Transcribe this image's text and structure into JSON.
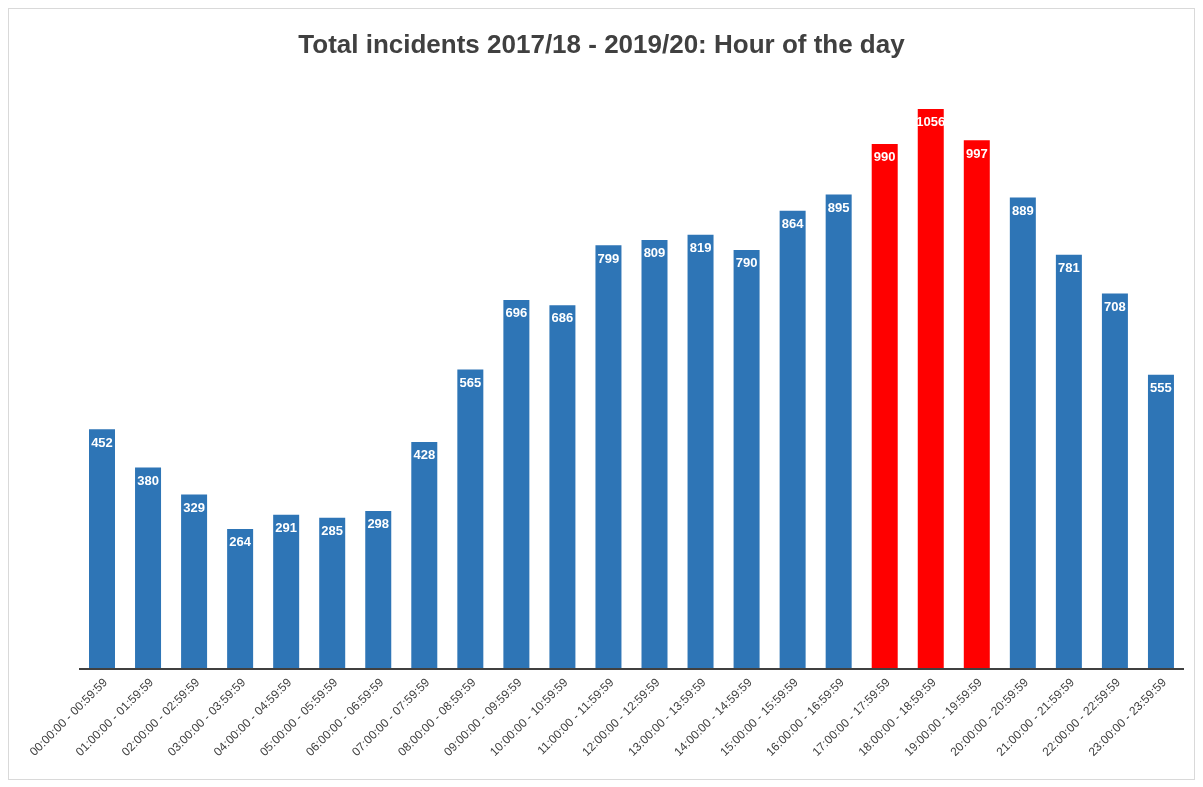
{
  "chart_data": {
    "type": "bar",
    "title": "Total incidents 2017/18 - 2019/20: Hour of the day",
    "categories": [
      "00:00:00 - 00:59:59",
      "01:00:00 - 01:59:59",
      "02:00:00 - 02:59:59",
      "03:00:00 - 03:59:59",
      "04:00:00 - 04:59:59",
      "05:00:00 - 05:59:59",
      "06:00:00 - 06:59:59",
      "07:00:00 - 07:59:59",
      "08:00:00 - 08:59:59",
      "09:00:00 - 09:59:59",
      "10:00:00 - 10:59:59",
      "11:00:00 - 11:59:59",
      "12:00:00 - 12:59:59",
      "13:00:00 - 13:59:59",
      "14:00:00 - 14:59:59",
      "15:00:00 - 15:59:59",
      "16:00:00 - 16:59:59",
      "17:00:00 - 17:59:59",
      "18:00:00 - 18:59:59",
      "19:00:00 - 19:59:59",
      "20:00:00 - 20:59:59",
      "21:00:00 - 21:59:59",
      "22:00:00 - 22:59:59",
      "23:00:00 - 23:59:59"
    ],
    "values": [
      452,
      380,
      329,
      264,
      291,
      285,
      298,
      428,
      565,
      696,
      686,
      799,
      809,
      819,
      790,
      864,
      895,
      990,
      1056,
      997,
      889,
      781,
      708,
      555
    ],
    "colors": [
      "#2e75b6",
      "#2e75b6",
      "#2e75b6",
      "#2e75b6",
      "#2e75b6",
      "#2e75b6",
      "#2e75b6",
      "#2e75b6",
      "#2e75b6",
      "#2e75b6",
      "#2e75b6",
      "#2e75b6",
      "#2e75b6",
      "#2e75b6",
      "#2e75b6",
      "#2e75b6",
      "#2e75b6",
      "#ff0000",
      "#ff0000",
      "#ff0000",
      "#2e75b6",
      "#2e75b6",
      "#2e75b6",
      "#2e75b6"
    ],
    "data_labels": true,
    "grid": false,
    "legend": false
  }
}
